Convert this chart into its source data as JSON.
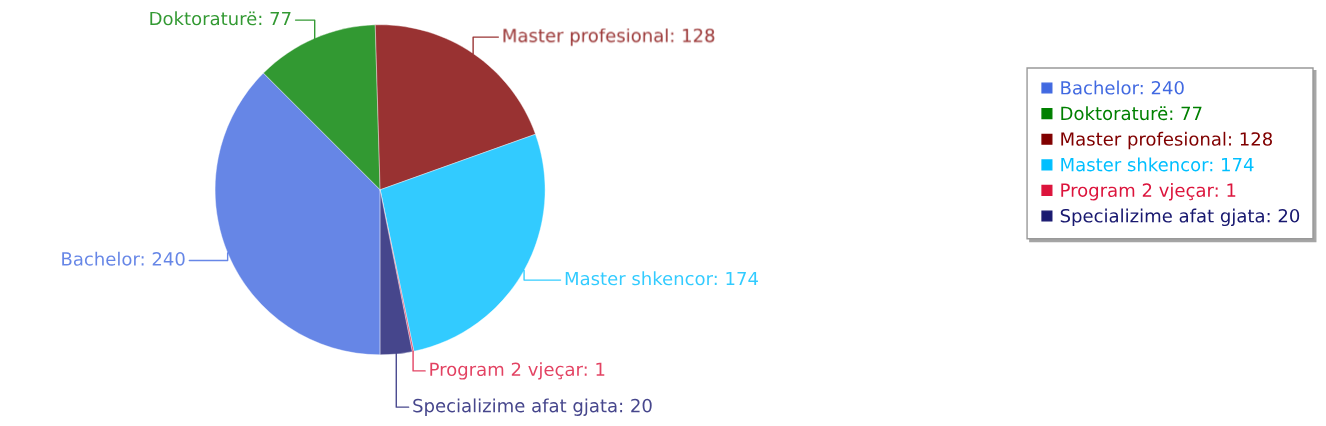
{
  "chart_data": {
    "type": "pie",
    "categories": [
      "Bachelor: 240",
      "Doktoraturë: 77",
      "Master profesional: 128",
      "Master shkencor: 174",
      "Program 2 vjeçar: 1",
      "Specializime afat gjata: 20"
    ],
    "values": [
      240,
      77,
      128,
      174,
      1,
      20
    ],
    "colors": [
      "#4169e1",
      "#008000",
      "#800000",
      "#00bfff",
      "#dc143c",
      "#191970"
    ],
    "legend": "right"
  }
}
